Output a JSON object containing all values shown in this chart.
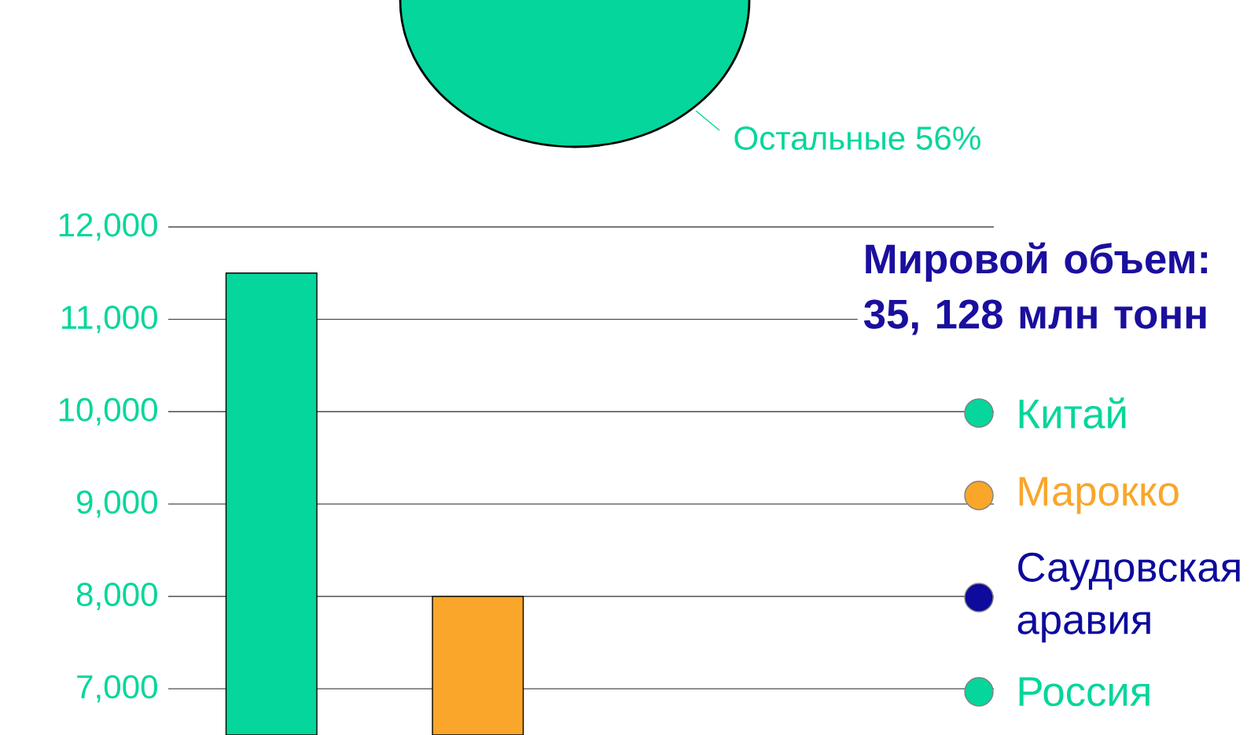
{
  "chart_data": {
    "type": "bar",
    "title": "Мировой объем: 35, 128 млн тонн",
    "annotations": [
      "Остальные 56%"
    ],
    "categories": [
      null,
      null,
      null,
      null
    ],
    "series": [
      {
        "name": "Китай",
        "color": "#05d69b",
        "values": [
          11500,
          null,
          null,
          null
        ]
      },
      {
        "name": "Марокко",
        "color": "#f9a62b",
        "values": [
          null,
          8000,
          null,
          null
        ]
      },
      {
        "name": "Саудовская аравия",
        "color": "#0d0a9c",
        "values": [
          null,
          null,
          null,
          null
        ]
      },
      {
        "name": "Россия",
        "color": "#05d69b",
        "values": [
          null,
          null,
          null,
          null
        ]
      }
    ],
    "ylim": [
      6500,
      12000
    ],
    "yticks": [
      {
        "value": 7000,
        "label": "7,000"
      },
      {
        "value": 8000,
        "label": "8,000"
      },
      {
        "value": 9000,
        "label": "9,000"
      },
      {
        "value": 10000,
        "label": "10,000"
      },
      {
        "value": 11000,
        "label": "11,000"
      },
      {
        "value": 12000,
        "label": "12,000"
      }
    ],
    "grid": "y",
    "legend": "right"
  }
}
